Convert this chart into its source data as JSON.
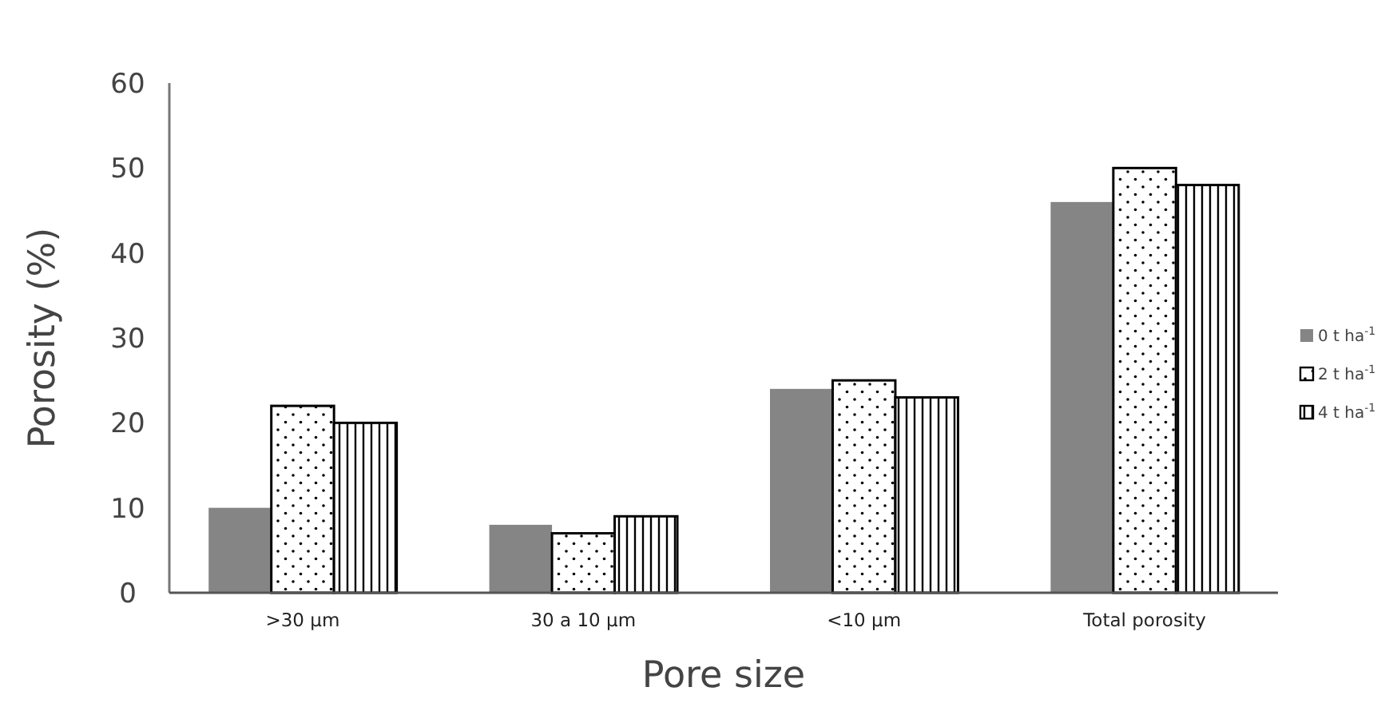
{
  "chart_data": {
    "type": "bar",
    "xlabel": "Pore size",
    "ylabel": "Porosity (%)",
    "categories": [
      ">30 µm",
      "30 a 10 µm",
      "<10 µm",
      "Total porosity"
    ],
    "series": [
      {
        "name": "0 t ha$^{-1}$",
        "color": "#858585",
        "values": [
          10,
          8,
          24,
          46
        ]
      },
      {
        "name": "2 t ha$^{-1}$",
        "color": "#000000",
        "values": [
          22,
          7,
          25,
          50
        ]
      },
      {
        "name": "4 t ha$^{-1}$",
        "color": "#000000",
        "values": [
          20,
          9,
          23,
          48
        ]
      }
    ],
    "ylim": [
      0,
      60
    ],
    "yticks": [
      0,
      10,
      20,
      30,
      40,
      50,
      60
    ],
    "grid": false,
    "legend": "right"
  }
}
